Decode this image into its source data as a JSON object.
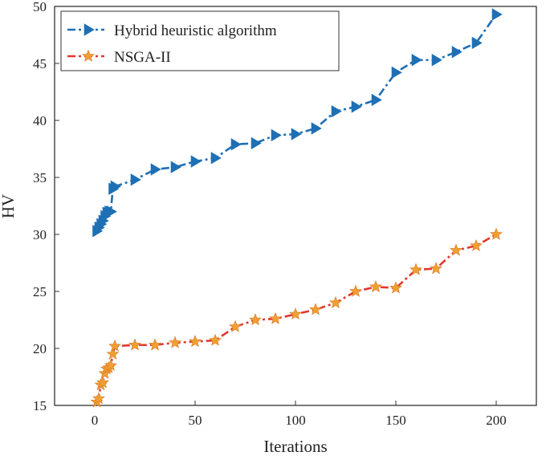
{
  "chart_data": {
    "type": "line",
    "title": "",
    "xlabel": "Iterations",
    "ylabel": "HV",
    "xlim": [
      -20,
      220
    ],
    "ylim": [
      15,
      50
    ],
    "xticks": [
      0,
      50,
      100,
      150,
      200
    ],
    "yticks": [
      15,
      20,
      25,
      30,
      35,
      40,
      45,
      50
    ],
    "x_tick_labels": [
      "0",
      "50",
      "100",
      "150",
      "200"
    ],
    "y_tick_labels": [
      "15",
      "20",
      "25",
      "30",
      "35",
      "40",
      "45",
      "50"
    ],
    "grid": false,
    "legend_position": "top-left",
    "series": [
      {
        "name": "Hybrid heuristic algorithm",
        "color": "#1f6fb4",
        "line_style": "dash-dot",
        "marker": "right-triangle",
        "x": [
          1,
          2,
          3,
          4,
          5,
          6,
          7,
          8,
          9,
          10,
          20,
          30,
          40,
          50,
          60,
          70,
          80,
          90,
          100,
          110,
          120,
          130,
          140,
          150,
          160,
          170,
          180,
          190,
          200
        ],
        "y": [
          30.3,
          30.6,
          30.9,
          31.2,
          31.6,
          31.9,
          32.0,
          32.0,
          34.0,
          34.2,
          34.8,
          35.7,
          35.9,
          36.4,
          36.7,
          37.9,
          38.0,
          38.7,
          38.8,
          39.3,
          40.8,
          41.2,
          41.8,
          44.2,
          45.3,
          45.3,
          46.0,
          46.8,
          49.3
        ]
      },
      {
        "name": "NSGA-II",
        "color": "#e0392f",
        "marker_color": "#f0a030",
        "line_style": "dash-dot",
        "marker": "star",
        "x": [
          1,
          2,
          3,
          4,
          5,
          6,
          7,
          8,
          9,
          10,
          20,
          30,
          40,
          50,
          60,
          70,
          80,
          90,
          100,
          110,
          120,
          130,
          140,
          150,
          160,
          170,
          180,
          190,
          200
        ],
        "y": [
          15.3,
          15.6,
          16.8,
          17.0,
          17.8,
          18.2,
          18.3,
          18.5,
          19.5,
          20.2,
          20.3,
          20.3,
          20.5,
          20.6,
          20.7,
          21.9,
          22.5,
          22.6,
          23.0,
          23.4,
          24.0,
          25.0,
          25.4,
          25.3,
          26.9,
          27.0,
          28.6,
          29.0,
          30.0
        ]
      }
    ]
  }
}
